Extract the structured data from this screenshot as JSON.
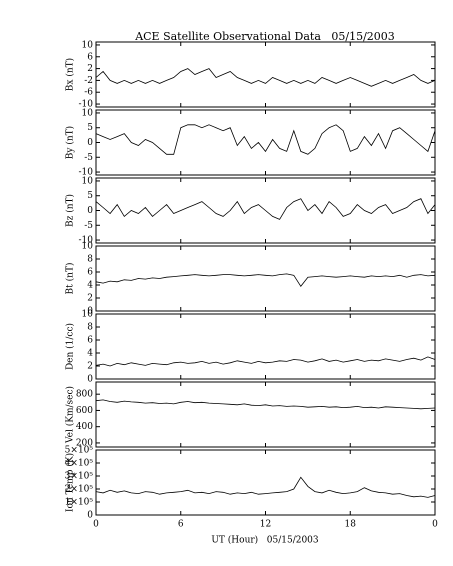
{
  "chart_data": [
    {
      "type": "line",
      "title": "ACE Satellite Observational Data   05/15/2003",
      "ylabel": "Bx (nT)",
      "x": [
        0,
        0.5,
        1,
        1.5,
        2,
        2.5,
        3,
        3.5,
        4,
        4.5,
        5,
        5.5,
        6,
        6.5,
        7,
        7.5,
        8,
        8.5,
        9,
        9.5,
        10,
        10.5,
        11,
        11.5,
        12,
        12.5,
        13,
        13.5,
        14,
        14.5,
        15,
        15.5,
        16,
        16.5,
        17,
        17.5,
        18,
        18.5,
        19,
        19.5,
        20,
        20.5,
        21,
        21.5,
        22,
        22.5,
        23,
        23.5,
        24
      ],
      "series": [
        {
          "color": "#000000",
          "values": [
            -1,
            1,
            -2,
            -3,
            -2,
            -3,
            -2,
            -3,
            -2,
            -3,
            -2,
            -1,
            1,
            2,
            0,
            1,
            2,
            -1,
            0,
            1,
            -1,
            -2,
            -3,
            -2,
            -3,
            -1,
            -2,
            -3,
            -2,
            -3,
            -2,
            -3,
            -1,
            -2,
            -3,
            -2,
            -1,
            -2,
            -3,
            -4,
            -3,
            -2,
            -3,
            -2,
            -1,
            0,
            -2,
            -3,
            -2
          ]
        }
      ],
      "ylim": [
        -11,
        11
      ],
      "yticks": [
        -10,
        -6,
        -2,
        2,
        6,
        10
      ]
    },
    {
      "type": "line",
      "ylabel": "By (nT)",
      "x": [
        0,
        0.5,
        1,
        1.5,
        2,
        2.5,
        3,
        3.5,
        4,
        4.5,
        5,
        5.5,
        6,
        6.5,
        7,
        7.5,
        8,
        8.5,
        9,
        9.5,
        10,
        10.5,
        11,
        11.5,
        12,
        12.5,
        13,
        13.5,
        14,
        14.5,
        15,
        15.5,
        16,
        16.5,
        17,
        17.5,
        18,
        18.5,
        19,
        19.5,
        20,
        20.5,
        21,
        21.5,
        22,
        22.5,
        23,
        23.5,
        24
      ],
      "series": [
        {
          "color": "#000000",
          "values": [
            3,
            2,
            1,
            2,
            3,
            0,
            -1,
            1,
            0,
            -2,
            -4,
            -4,
            5,
            6,
            6,
            5,
            6,
            5,
            4,
            5,
            -1,
            2,
            -2,
            0,
            -3,
            1,
            -2,
            -3,
            4,
            -3,
            -4,
            -2,
            3,
            5,
            6,
            4,
            -3,
            -2,
            2,
            -1,
            3,
            -2,
            4,
            5,
            3,
            1,
            -1,
            -3,
            4
          ]
        }
      ],
      "ylim": [
        -11,
        11
      ],
      "yticks": [
        -10,
        -5,
        0,
        5,
        10
      ]
    },
    {
      "type": "line",
      "ylabel": "Bz (nT)",
      "x": [
        0,
        0.5,
        1,
        1.5,
        2,
        2.5,
        3,
        3.5,
        4,
        4.5,
        5,
        5.5,
        6,
        6.5,
        7,
        7.5,
        8,
        8.5,
        9,
        9.5,
        10,
        10.5,
        11,
        11.5,
        12,
        12.5,
        13,
        13.5,
        14,
        14.5,
        15,
        15.5,
        16,
        16.5,
        17,
        17.5,
        18,
        18.5,
        19,
        19.5,
        20,
        20.5,
        21,
        21.5,
        22,
        22.5,
        23,
        23.5,
        24
      ],
      "series": [
        {
          "color": "#000000",
          "values": [
            3,
            1,
            -1,
            2,
            -2,
            0,
            -1,
            1,
            -2,
            0,
            2,
            -1,
            0,
            1,
            2,
            3,
            1,
            -1,
            -2,
            0,
            3,
            -1,
            1,
            2,
            0,
            -2,
            -3,
            1,
            3,
            4,
            0,
            2,
            -1,
            3,
            1,
            -2,
            -1,
            2,
            0,
            -1,
            1,
            2,
            -1,
            0,
            1,
            3,
            4,
            -1,
            2
          ]
        }
      ],
      "ylim": [
        -11,
        11
      ],
      "yticks": [
        -10,
        -5,
        0,
        5,
        10
      ]
    },
    {
      "type": "line",
      "ylabel": "Bt (nT)",
      "x": [
        0,
        0.5,
        1,
        1.5,
        2,
        2.5,
        3,
        3.5,
        4,
        4.5,
        5,
        5.5,
        6,
        6.5,
        7,
        7.5,
        8,
        8.5,
        9,
        9.5,
        10,
        10.5,
        11,
        11.5,
        12,
        12.5,
        13,
        13.5,
        14,
        14.5,
        15,
        15.5,
        16,
        16.5,
        17,
        17.5,
        18,
        18.5,
        19,
        19.5,
        20,
        20.5,
        21,
        21.5,
        22,
        22.5,
        23,
        23.5,
        24
      ],
      "series": [
        {
          "color": "#000000",
          "values": [
            4.5,
            4.3,
            4.6,
            4.5,
            4.8,
            4.7,
            5,
            4.9,
            5.1,
            5,
            5.2,
            5.3,
            5.4,
            5.5,
            5.6,
            5.5,
            5.4,
            5.5,
            5.6,
            5.6,
            5.5,
            5.4,
            5.5,
            5.6,
            5.5,
            5.4,
            5.6,
            5.7,
            5.5,
            3.8,
            5.2,
            5.3,
            5.4,
            5.3,
            5.2,
            5.3,
            5.4,
            5.3,
            5.2,
            5.4,
            5.3,
            5.4,
            5.3,
            5.5,
            5.2,
            5.5,
            5.6,
            5.4,
            5.5
          ]
        }
      ],
      "ylim": [
        0,
        10
      ],
      "yticks": [
        0,
        2,
        4,
        6,
        8,
        10
      ]
    },
    {
      "type": "line",
      "ylabel": "Den (1/cc)",
      "x": [
        0,
        0.5,
        1,
        1.5,
        2,
        2.5,
        3,
        3.5,
        4,
        4.5,
        5,
        5.5,
        6,
        6.5,
        7,
        7.5,
        8,
        8.5,
        9,
        9.5,
        10,
        10.5,
        11,
        11.5,
        12,
        12.5,
        13,
        13.5,
        14,
        14.5,
        15,
        15.5,
        16,
        16.5,
        17,
        17.5,
        18,
        18.5,
        19,
        19.5,
        20,
        20.5,
        21,
        21.5,
        22,
        22.5,
        23,
        23.5,
        24
      ],
      "series": [
        {
          "color": "#000000",
          "values": [
            2.1,
            2.3,
            2,
            2.4,
            2.2,
            2.5,
            2.3,
            2.1,
            2.4,
            2.3,
            2.2,
            2.5,
            2.6,
            2.4,
            2.5,
            2.7,
            2.4,
            2.6,
            2.3,
            2.5,
            2.8,
            2.6,
            2.4,
            2.7,
            2.5,
            2.6,
            2.8,
            2.7,
            3,
            2.9,
            2.6,
            2.8,
            3.1,
            2.7,
            2.9,
            2.6,
            2.8,
            3,
            2.7,
            2.9,
            2.8,
            3.1,
            2.9,
            2.7,
            3,
            3.2,
            2.9,
            3.4,
            3
          ]
        }
      ],
      "ylim": [
        0,
        10
      ],
      "yticks": [
        0,
        2,
        4,
        6,
        8,
        10
      ]
    },
    {
      "type": "line",
      "ylabel": "Vel (Km/sec)",
      "x": [
        0,
        0.5,
        1,
        1.5,
        2,
        2.5,
        3,
        3.5,
        4,
        4.5,
        5,
        5.5,
        6,
        6.5,
        7,
        7.5,
        8,
        8.5,
        9,
        9.5,
        10,
        10.5,
        11,
        11.5,
        12,
        12.5,
        13,
        13.5,
        14,
        14.5,
        15,
        15.5,
        16,
        16.5,
        17,
        17.5,
        18,
        18.5,
        19,
        19.5,
        20,
        20.5,
        21,
        21.5,
        22,
        22.5,
        23,
        23.5,
        24
      ],
      "series": [
        {
          "color": "#000000",
          "values": [
            720,
            730,
            710,
            700,
            715,
            705,
            700,
            690,
            695,
            685,
            690,
            680,
            700,
            710,
            695,
            700,
            690,
            685,
            680,
            675,
            670,
            680,
            665,
            660,
            670,
            655,
            660,
            650,
            655,
            650,
            640,
            645,
            650,
            640,
            645,
            635,
            640,
            650,
            635,
            640,
            630,
            645,
            640,
            635,
            630,
            625,
            620,
            625,
            630
          ]
        }
      ],
      "ylim": [
        150,
        950
      ],
      "yticks": [
        200,
        400,
        600,
        800
      ]
    },
    {
      "type": "line",
      "ylabel": "Ion Temp (K)",
      "xlabel": "UT (Hour)   05/15/2003",
      "x": [
        0,
        0.5,
        1,
        1.5,
        2,
        2.5,
        3,
        3.5,
        4,
        4.5,
        5,
        5.5,
        6,
        6.5,
        7,
        7.5,
        8,
        8.5,
        9,
        9.5,
        10,
        10.5,
        11,
        11.5,
        12,
        12.5,
        13,
        13.5,
        14,
        14.5,
        15,
        15.5,
        16,
        16.5,
        17,
        17.5,
        18,
        18.5,
        19,
        19.5,
        20,
        20.5,
        21,
        21.5,
        22,
        22.5,
        23,
        23.5,
        24
      ],
      "series": [
        {
          "color": "#000000",
          "values": [
            180000,
            170000,
            190000,
            175000,
            185000,
            170000,
            165000,
            180000,
            175000,
            160000,
            170000,
            175000,
            180000,
            190000,
            170000,
            175000,
            165000,
            180000,
            175000,
            160000,
            170000,
            165000,
            175000,
            160000,
            165000,
            170000,
            175000,
            180000,
            200000,
            290000,
            220000,
            180000,
            170000,
            190000,
            175000,
            165000,
            170000,
            180000,
            210000,
            185000,
            175000,
            170000,
            160000,
            165000,
            150000,
            140000,
            145000,
            135000,
            150000
          ]
        }
      ],
      "ylim": [
        0,
        500000
      ],
      "yticks": [
        0,
        {
          "value": 100000,
          "label": "1×10⁵"
        },
        {
          "value": 200000,
          "label": "2×10⁵"
        },
        {
          "value": 300000,
          "label": "3×10⁵"
        },
        {
          "value": 400000,
          "label": "4×10⁵"
        },
        {
          "value": 500000,
          "label": "5×10⁵"
        }
      ],
      "xlim": [
        0,
        24
      ],
      "xticks": [
        0,
        6,
        12,
        18,
        {
          "value": 24,
          "label": "0"
        }
      ]
    }
  ]
}
